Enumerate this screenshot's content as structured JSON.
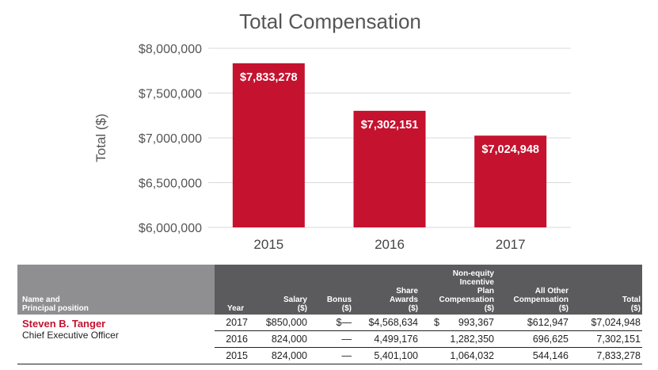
{
  "chart_data": {
    "type": "bar",
    "title": "Total Compensation",
    "ylabel": "Total ($)",
    "xlabel": "",
    "categories": [
      "2015",
      "2016",
      "2017"
    ],
    "values": [
      7833278,
      7302151,
      7024948
    ],
    "data_labels": [
      "$7,833,278",
      "$7,302,151",
      "$7,024,948"
    ],
    "ylim": [
      6000000,
      8000000
    ],
    "yticks": [
      6000000,
      6500000,
      7000000,
      7500000,
      8000000
    ],
    "ytick_labels": [
      "$6,000,000",
      "$6,500,000",
      "$7,000,000",
      "$7,500,000",
      "$8,000,000"
    ],
    "grid": true,
    "bar_color": "#c4122f"
  },
  "table": {
    "name_header": [
      "Name and",
      "Principal position"
    ],
    "columns": [
      {
        "key": "year",
        "lines": [
          "Year"
        ]
      },
      {
        "key": "salary",
        "lines": [
          "Salary",
          "($)"
        ]
      },
      {
        "key": "bonus",
        "lines": [
          "Bonus",
          "($)"
        ]
      },
      {
        "key": "share",
        "lines": [
          "Share",
          "Awards",
          "($)"
        ]
      },
      {
        "key": "nonequity",
        "lines": [
          "Non-equity",
          "Incentive",
          "Plan",
          "Compensation",
          "($)"
        ]
      },
      {
        "key": "other",
        "lines": [
          "All Other",
          "Compensation",
          "($)"
        ]
      },
      {
        "key": "total",
        "lines": [
          "Total",
          "($)"
        ]
      }
    ],
    "exec_name": "Steven B. Tanger",
    "exec_title": "Chief Executive Officer",
    "rows": [
      {
        "year": "2017",
        "salary": "$850,000",
        "bonus": "$—",
        "share": "$4,568,634",
        "nonequity_symbol": "$",
        "nonequity": "993,367",
        "other": "$612,947",
        "total": "$7,024,948"
      },
      {
        "year": "2016",
        "salary": "824,000",
        "bonus": "—",
        "share": "4,499,176",
        "nonequity_symbol": "",
        "nonequity": "1,282,350",
        "other": "696,625",
        "total": "7,302,151"
      },
      {
        "year": "2015",
        "salary": "824,000",
        "bonus": "—",
        "share": "5,401,100",
        "nonequity_symbol": "",
        "nonequity": "1,064,032",
        "other": "544,146",
        "total": "7,833,278"
      }
    ]
  }
}
